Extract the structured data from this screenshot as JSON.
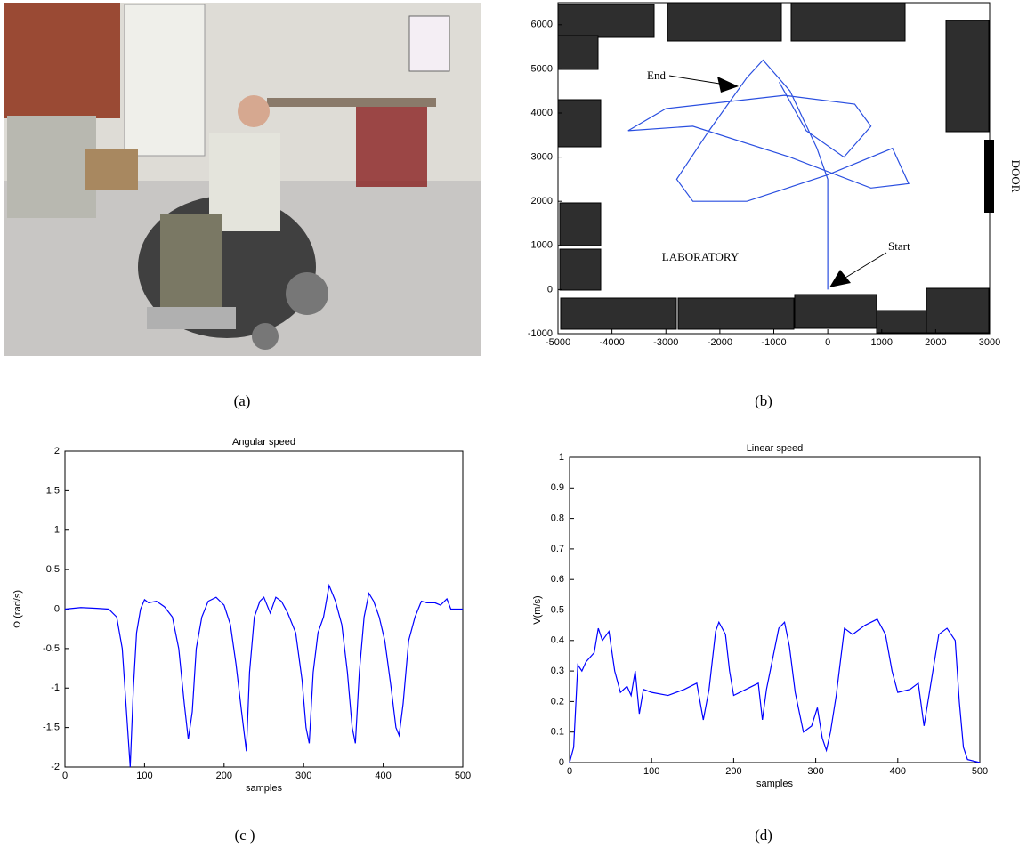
{
  "captions": [
    "(a)",
    "(b)",
    "(c )",
    "(d)"
  ],
  "chart_data": [
    {
      "type": "line",
      "annotations": [
        "End",
        "Start",
        "LABORATORY",
        "DOOR"
      ],
      "xlim": [
        -5000,
        3000
      ],
      "xticks": [
        -5000,
        -4000,
        -3000,
        -2000,
        -1000,
        0,
        1000,
        2000,
        3000
      ],
      "ylim": [
        -1000,
        6500
      ],
      "yticks": [
        -1000,
        0,
        1000,
        2000,
        3000,
        4000,
        5000,
        6000
      ],
      "color": "#2a4fe0",
      "x": [
        0,
        0,
        0,
        -200,
        -700,
        -1200,
        -1500,
        -2200,
        -2800,
        -2500,
        -1500,
        0,
        1200,
        1500,
        800,
        -700,
        -2500,
        -3700,
        -3000,
        -800,
        500,
        800,
        300,
        -400,
        -900
      ],
      "values": [
        0,
        1500,
        2500,
        3200,
        4500,
        5200,
        4800,
        3600,
        2500,
        2000,
        2000,
        2600,
        3200,
        2400,
        2300,
        3000,
        3700,
        3600,
        4100,
        4400,
        4200,
        3700,
        3000,
        3600,
        4700
      ]
    },
    {
      "type": "line",
      "title": "Angular speed",
      "x_label": "samples",
      "y_label": "Ω (rad/s)",
      "xlim": [
        0,
        500
      ],
      "xticks": [
        0,
        100,
        200,
        300,
        400,
        500
      ],
      "ylim": [
        -2,
        2
      ],
      "yticks": [
        -2,
        -1.5,
        -1,
        -0.5,
        0,
        0.5,
        1,
        1.5,
        2
      ],
      "color": "#0000ff",
      "x": [
        0,
        20,
        40,
        55,
        65,
        72,
        78,
        82,
        86,
        90,
        95,
        100,
        105,
        115,
        125,
        135,
        143,
        150,
        155,
        160,
        165,
        172,
        180,
        190,
        200,
        208,
        215,
        222,
        228,
        232,
        238,
        245,
        250,
        258,
        265,
        272,
        280,
        290,
        298,
        303,
        307,
        312,
        318,
        325,
        332,
        340,
        348,
        355,
        361,
        365,
        370,
        376,
        382,
        388,
        395,
        402,
        410,
        416,
        420,
        425,
        432,
        440,
        448,
        455,
        465,
        472,
        480,
        485,
        500
      ],
      "values": [
        0,
        0.02,
        0.01,
        0,
        -0.1,
        -0.5,
        -1.4,
        -2,
        -1,
        -0.3,
        0,
        0.12,
        0.08,
        0.1,
        0.03,
        -0.1,
        -0.5,
        -1.2,
        -1.65,
        -1.3,
        -0.5,
        -0.1,
        0.1,
        0.15,
        0.05,
        -0.2,
        -0.7,
        -1.3,
        -1.8,
        -0.8,
        -0.1,
        0.1,
        0.15,
        -0.05,
        0.15,
        0.1,
        -0.05,
        -0.3,
        -0.9,
        -1.5,
        -1.7,
        -0.8,
        -0.3,
        -0.1,
        0.3,
        0.1,
        -0.2,
        -0.8,
        -1.5,
        -1.7,
        -0.8,
        -0.1,
        0.2,
        0.1,
        -0.1,
        -0.4,
        -1,
        -1.5,
        -1.6,
        -1.2,
        -0.4,
        -0.1,
        0.1,
        0.08,
        0.08,
        0.05,
        0.13,
        0,
        0
      ]
    },
    {
      "type": "line",
      "title": "Linear speed",
      "x_label": "samples",
      "y_label": "V(m/s)",
      "xlim": [
        0,
        500
      ],
      "xticks": [
        0,
        100,
        200,
        300,
        400,
        500
      ],
      "ylim": [
        0,
        1
      ],
      "yticks": [
        0,
        0.1,
        0.2,
        0.3,
        0.4,
        0.5,
        0.6,
        0.7,
        0.8,
        0.9,
        1
      ],
      "color": "#0000ff",
      "x": [
        0,
        5,
        10,
        15,
        20,
        30,
        35,
        40,
        48,
        55,
        62,
        70,
        75,
        80,
        85,
        90,
        100,
        120,
        140,
        155,
        163,
        170,
        178,
        182,
        190,
        195,
        200,
        215,
        230,
        235,
        240,
        255,
        262,
        268,
        275,
        285,
        295,
        302,
        308,
        313,
        318,
        325,
        335,
        345,
        360,
        375,
        385,
        393,
        400,
        415,
        425,
        432,
        438,
        450,
        460,
        470,
        475,
        480,
        485,
        500
      ],
      "values": [
        0,
        0.05,
        0.32,
        0.3,
        0.33,
        0.36,
        0.44,
        0.4,
        0.43,
        0.3,
        0.23,
        0.25,
        0.22,
        0.3,
        0.16,
        0.24,
        0.23,
        0.22,
        0.24,
        0.26,
        0.14,
        0.24,
        0.43,
        0.46,
        0.42,
        0.3,
        0.22,
        0.24,
        0.26,
        0.14,
        0.24,
        0.44,
        0.46,
        0.38,
        0.23,
        0.1,
        0.12,
        0.18,
        0.08,
        0.04,
        0.1,
        0.22,
        0.44,
        0.42,
        0.45,
        0.47,
        0.42,
        0.3,
        0.23,
        0.24,
        0.26,
        0.12,
        0.22,
        0.42,
        0.44,
        0.4,
        0.2,
        0.05,
        0.01,
        0
      ]
    }
  ]
}
